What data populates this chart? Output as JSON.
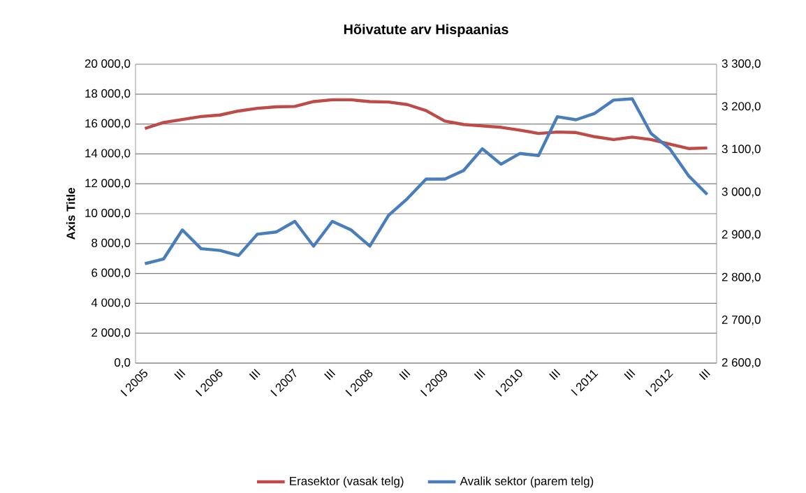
{
  "chart_data": {
    "type": "line",
    "title": "Hõivatute arv Hispaanias",
    "ylabel": "Axis Title",
    "categories": [
      "I 2005",
      null,
      "III",
      null,
      "I 2006",
      null,
      "III",
      null,
      "I 2007",
      null,
      "III",
      null,
      "I 2008",
      null,
      "III",
      null,
      "I 2009",
      null,
      "III",
      null,
      "I 2010",
      null,
      "III",
      null,
      "I 2011",
      null,
      "III",
      null,
      "I 2012",
      null,
      "III"
    ],
    "series": [
      {
        "name": "Erasektor (vasak telg)",
        "color": "#be4b48",
        "values": [
          15700,
          16100,
          16300,
          16500,
          16600,
          16870,
          17050,
          17150,
          17180,
          17500,
          17620,
          17620,
          17500,
          17470,
          17300,
          16900,
          16200,
          15970,
          15870,
          15780,
          15590,
          15370,
          15460,
          15430,
          15150,
          14960,
          15120,
          14960,
          14650,
          14360,
          14400
        ]
      },
      {
        "name": "Avalik sektor (parem telg)",
        "color": "#4a7ebb",
        "axis": "y2",
        "values": [
          2833,
          2844,
          2912,
          2868,
          2864,
          2852,
          2902,
          2907,
          2932,
          2874,
          2932,
          2912,
          2874,
          2946,
          2985,
          3031,
          3031,
          3051,
          3102,
          3066,
          3091,
          3086,
          3177,
          3170,
          3185,
          3216,
          3219,
          3138,
          3102,
          3039,
          2995
        ]
      }
    ],
    "ylim": [
      0,
      20000
    ],
    "yticks": [
      {
        "value": 0,
        "label": "0,0"
      },
      {
        "value": 2000,
        "label": "2 000,0"
      },
      {
        "value": 4000,
        "label": "4 000,0"
      },
      {
        "value": 6000,
        "label": "6 000,0"
      },
      {
        "value": 8000,
        "label": "8 000,0"
      },
      {
        "value": 10000,
        "label": "10 000,0"
      },
      {
        "value": 12000,
        "label": "12 000,0"
      },
      {
        "value": 14000,
        "label": "14 000,0"
      },
      {
        "value": 16000,
        "label": "16 000,0"
      },
      {
        "value": 18000,
        "label": "18 000,0"
      },
      {
        "value": 20000,
        "label": "20 000,0"
      }
    ],
    "y2lim": [
      2600,
      3300
    ],
    "y2ticks": [
      {
        "value": 2600,
        "label": "2 600,0"
      },
      {
        "value": 2700,
        "label": "2 700,0"
      },
      {
        "value": 2800,
        "label": "2 800,0"
      },
      {
        "value": 2900,
        "label": "2 900,0"
      },
      {
        "value": 3000,
        "label": "3 000,0"
      },
      {
        "value": 3100,
        "label": "3 100,0"
      },
      {
        "value": 3200,
        "label": "3 200,0"
      },
      {
        "value": 3300,
        "label": "3 300,0"
      }
    ],
    "grid": "y",
    "legend": "bottom",
    "marker": "none",
    "line_style": "solid"
  }
}
